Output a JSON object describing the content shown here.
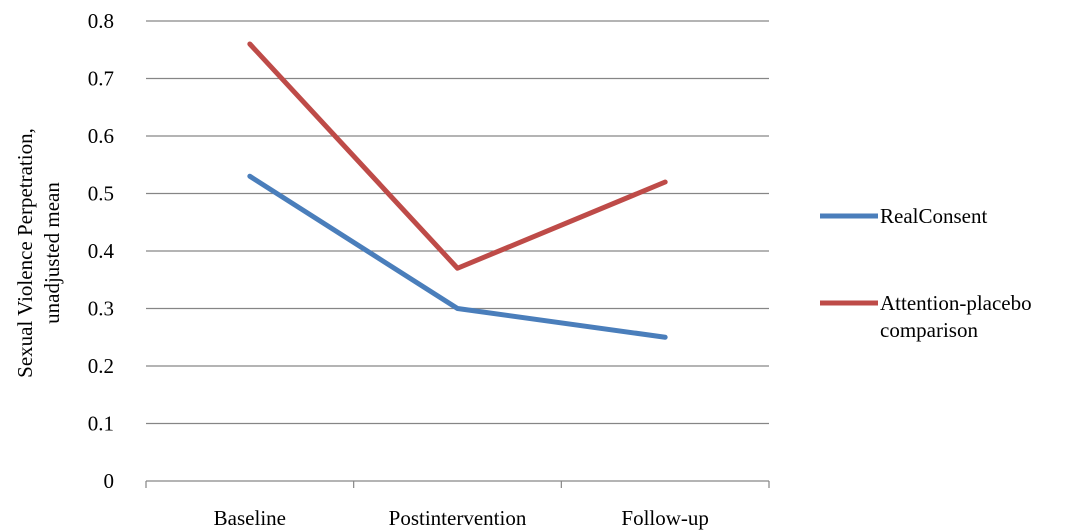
{
  "chart_data": {
    "type": "line",
    "title": "",
    "xlabel": "",
    "ylabel_lines": [
      "Sexual Violence Perpetration,",
      "unadjusted mean"
    ],
    "categories": [
      "Baseline",
      "Postintervention",
      "Follow-up"
    ],
    "ylim": [
      0,
      0.8
    ],
    "yticks": [
      "0",
      "0.1",
      "0.2",
      "0.3",
      "0.4",
      "0.5",
      "0.6",
      "0.7",
      "0.8"
    ],
    "grid": true,
    "legend_position": "right",
    "series": [
      {
        "name": "RealConsent",
        "name_lines": [
          "RealConsent"
        ],
        "color": "#4a7ebb",
        "values": [
          0.53,
          0.3,
          0.25
        ]
      },
      {
        "name": "Attention-placebo comparison",
        "name_lines": [
          "Attention-placebo",
          "comparison"
        ],
        "color": "#be4b48",
        "values": [
          0.76,
          0.37,
          0.52
        ]
      }
    ]
  }
}
